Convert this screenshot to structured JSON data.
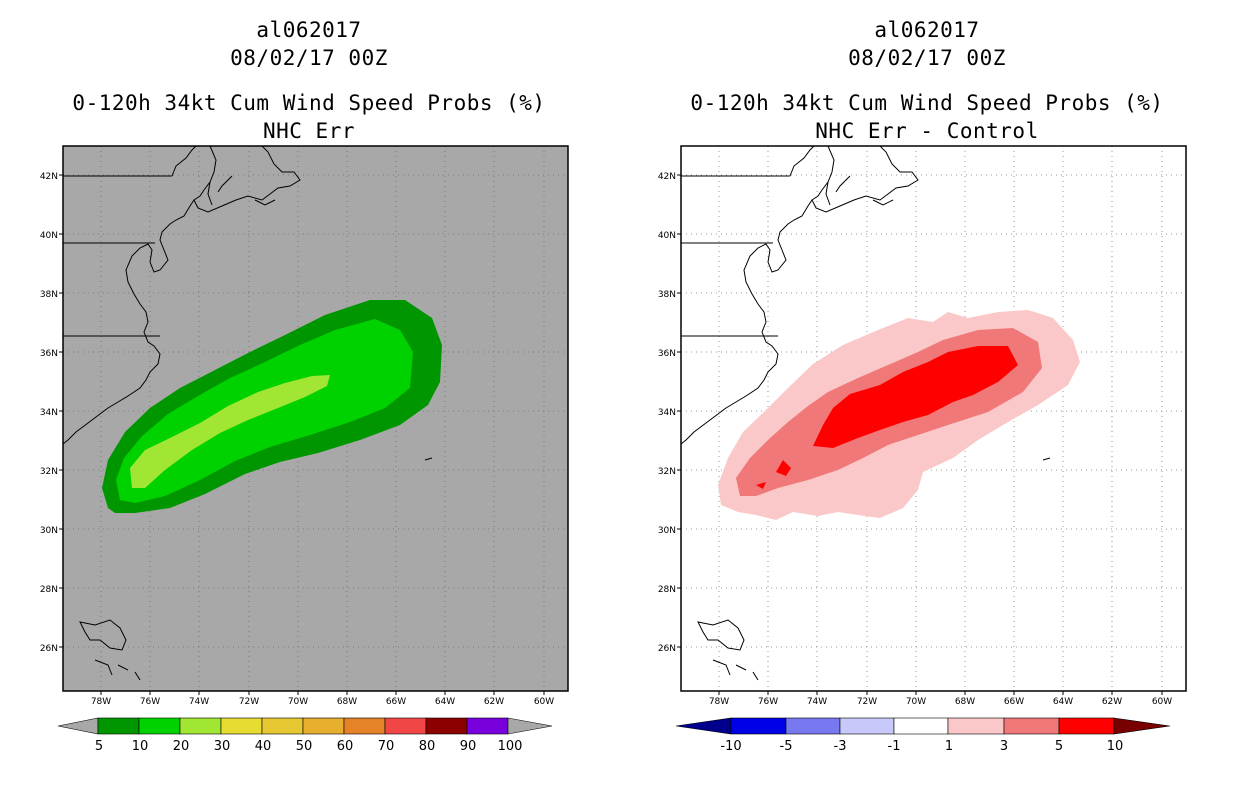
{
  "colors": {
    "background": "#ffffff",
    "ocean_left": "#a8a8a8",
    "prob_5": "#009600",
    "prob_10": "#00d200",
    "prob_20": "#a0e632",
    "prob_30": "#e6dc32",
    "prob_40": "#e6c832",
    "prob_50": "#e6af2d",
    "prob_60": "#e68228",
    "prob_70": "#f04646",
    "prob_80": "#8c0000",
    "prob_90": "#7800dc",
    "diff_neg10": "#0000c8",
    "diff_neg5": "#3c3cf5",
    "diff_neg3": "#7878f0",
    "diff_neg1": "#c8c8fa",
    "diff_zero": "#ffffff",
    "diff_1": "#fac8c8",
    "diff_3": "#f07878",
    "diff_5": "#ff0000",
    "diff_10": "#a00000",
    "diff_over": "#780000"
  },
  "left": {
    "storm_id": "al062017",
    "datetime": "08/02/17 00Z",
    "product": "0-120h 34kt Cum Wind Speed Probs (%)",
    "subtitle": "NHC Err",
    "colorbar_labels": [
      "5",
      "10",
      "20",
      "30",
      "40",
      "50",
      "60",
      "70",
      "80",
      "90",
      "100"
    ]
  },
  "right": {
    "storm_id": "al062017",
    "datetime": "08/02/17 00Z",
    "product": "0-120h 34kt Cum Wind Speed Probs (%)",
    "subtitle": "NHC Err - Control",
    "colorbar_labels": [
      "-10",
      "-5",
      "-3",
      "-1",
      "1",
      "3",
      "5",
      "10"
    ]
  },
  "map": {
    "lat_labels": [
      "42N",
      "40N",
      "38N",
      "36N",
      "34N",
      "32N",
      "30N",
      "28N",
      "26N"
    ],
    "lon_labels": [
      "78W",
      "76W",
      "74W",
      "72W",
      "70W",
      "68W",
      "66W",
      "64W",
      "62W",
      "60W"
    ]
  }
}
